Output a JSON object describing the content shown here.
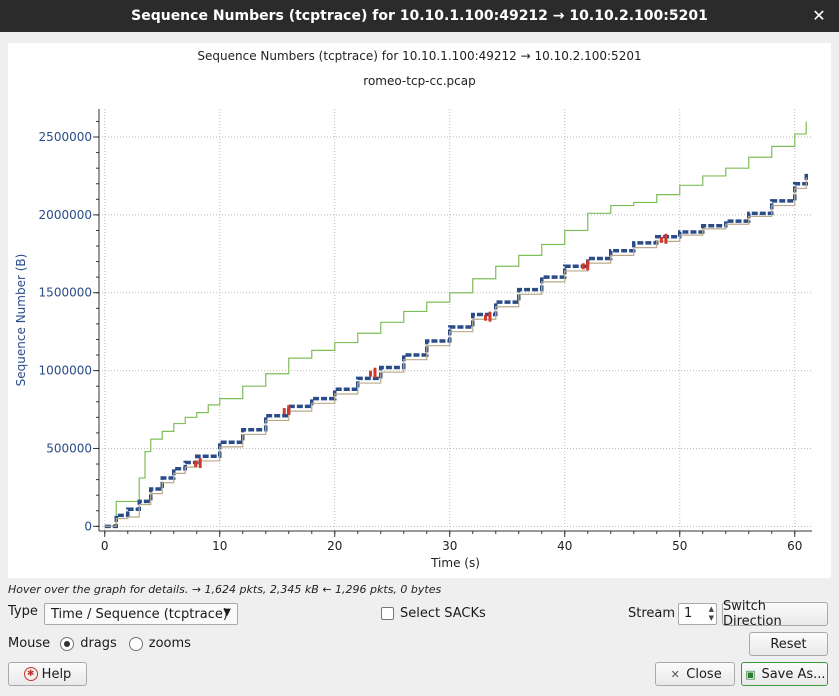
{
  "window": {
    "title": "Sequence Numbers (tcptrace) for 10.10.1.100:49212 → 10.10.2.100:5201"
  },
  "chart_data": {
    "type": "line",
    "title": "Sequence Numbers (tcptrace) for 10.10.1.100:49212 → 10.10.2.100:5201",
    "subtitle": "romeo-tcp-cc.pcap",
    "xlabel": "Time (s)",
    "ylabel": "Sequence Number (B)",
    "xlim": [
      -0.5,
      61.5
    ],
    "ylim": [
      -30000,
      2680000
    ],
    "x_ticks": [
      0,
      10,
      20,
      30,
      40,
      50,
      60
    ],
    "y_ticks": [
      0,
      500000,
      1000000,
      1500000,
      2000000,
      2500000
    ],
    "grid": true,
    "series": [
      {
        "color": "#7fbf5a",
        "x": [
          0,
          1,
          2.5,
          3,
          3.5,
          4,
          5,
          6,
          7,
          8,
          9,
          10,
          12,
          14,
          16,
          18,
          20,
          22,
          24,
          26,
          28,
          30,
          32,
          34,
          36,
          38,
          40,
          42,
          44,
          46,
          48,
          50,
          52,
          54,
          56,
          58,
          60,
          61
        ],
        "values": [
          0,
          160000,
          160000,
          310000,
          480000,
          560000,
          610000,
          660000,
          700000,
          730000,
          780000,
          820000,
          900000,
          980000,
          1080000,
          1130000,
          1180000,
          1240000,
          1310000,
          1380000,
          1440000,
          1500000,
          1590000,
          1670000,
          1740000,
          1810000,
          1900000,
          2010000,
          2060000,
          2080000,
          2130000,
          2190000,
          2250000,
          2300000,
          2370000,
          2440000,
          2520000,
          2600000
        ]
      },
      {
        "color": "#2a4c88",
        "x": [
          0,
          1,
          2,
          3,
          4,
          5,
          6,
          7,
          8,
          10,
          12,
          14,
          16,
          18,
          20,
          22,
          24,
          26,
          28,
          30,
          32,
          34,
          36,
          38,
          40,
          42,
          44,
          46,
          48,
          50,
          52,
          54,
          56,
          58,
          60,
          61
        ],
        "values": [
          0,
          70000,
          110000,
          160000,
          240000,
          310000,
          370000,
          410000,
          450000,
          540000,
          620000,
          710000,
          770000,
          820000,
          880000,
          950000,
          1020000,
          1100000,
          1190000,
          1280000,
          1360000,
          1440000,
          1520000,
          1600000,
          1670000,
          1720000,
          1770000,
          1820000,
          1860000,
          1890000,
          1930000,
          1960000,
          2010000,
          2090000,
          2200000,
          2270000
        ]
      },
      {
        "color": "#b9a98a",
        "x": [
          0,
          1,
          2,
          2.8,
          3,
          4,
          5,
          6,
          7,
          8,
          10,
          12,
          14,
          16,
          18,
          20,
          22,
          24,
          26,
          28,
          30,
          32,
          34,
          36,
          38,
          40,
          42,
          44,
          46,
          48,
          50,
          52,
          54,
          56,
          58,
          60,
          61
        ],
        "values": [
          0,
          50000,
          60000,
          60000,
          140000,
          210000,
          280000,
          340000,
          380000,
          420000,
          510000,
          590000,
          680000,
          740000,
          790000,
          850000,
          920000,
          990000,
          1070000,
          1160000,
          1250000,
          1330000,
          1410000,
          1490000,
          1570000,
          1640000,
          1690000,
          1740000,
          1790000,
          1830000,
          1870000,
          1910000,
          1940000,
          1990000,
          2060000,
          2170000,
          2240000
        ]
      }
    ],
    "sack_x": [
      8.3,
      16,
      23.5,
      33.5,
      42,
      48.8
    ],
    "sack_y": [
      400000,
      740000,
      980000,
      1340000,
      1670000,
      1840000
    ]
  },
  "status": {
    "hint": "Hover over the graph for details. → 1,624 pkts, 2,345 kB ← 1,296 pkts, 0 bytes"
  },
  "controls": {
    "type_label": "Type",
    "type_value": "Time / Sequence (tcptrace)",
    "select_sacks_label": "Select SACKs",
    "stream_label": "Stream",
    "stream_value": "1",
    "switch_direction_label": "Switch Direction",
    "mouse_label": "Mouse",
    "drags_label": "drags",
    "zooms_label": "zooms",
    "reset_label": "Reset",
    "help_label": "Help",
    "close_label": "Close",
    "save_as_label": "Save As..."
  },
  "colors": {
    "titlebar": "#2b2b2b",
    "axis_text": "#2a4c88",
    "sack_marks": "#d03a2a"
  }
}
